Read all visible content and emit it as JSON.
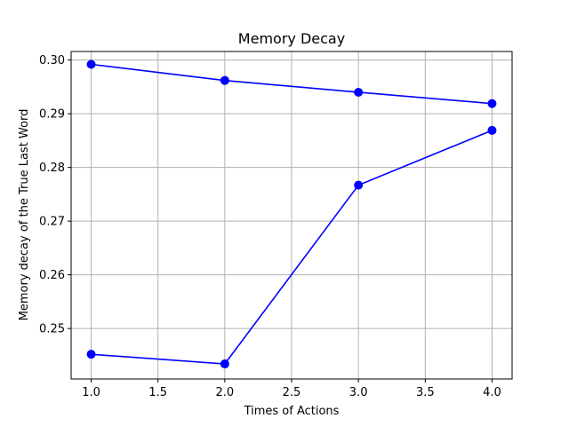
{
  "chart_data": {
    "type": "line",
    "title": "Memory Decay",
    "xlabel": "Times of Actions",
    "ylabel": "Memory decay of the True Last Word",
    "x": [
      1.0,
      2.0,
      3.0,
      4.0
    ],
    "xlim": [
      0.85,
      4.15
    ],
    "ylim": [
      0.2406,
      0.3016
    ],
    "xticks": [
      "1.0",
      "1.5",
      "2.0",
      "2.5",
      "3.0",
      "3.5",
      "4.0"
    ],
    "yticks": [
      "0.25",
      "0.26",
      "0.27",
      "0.28",
      "0.29",
      "0.30"
    ],
    "grid": true,
    "series": [
      {
        "values": [
          0.2992,
          0.2962,
          0.294,
          0.2919
        ],
        "color": "#0000ff",
        "marker": "circle"
      },
      {
        "values": [
          0.2452,
          0.2434,
          0.2767,
          0.2869
        ],
        "color": "#0000ff",
        "marker": "circle"
      }
    ]
  }
}
